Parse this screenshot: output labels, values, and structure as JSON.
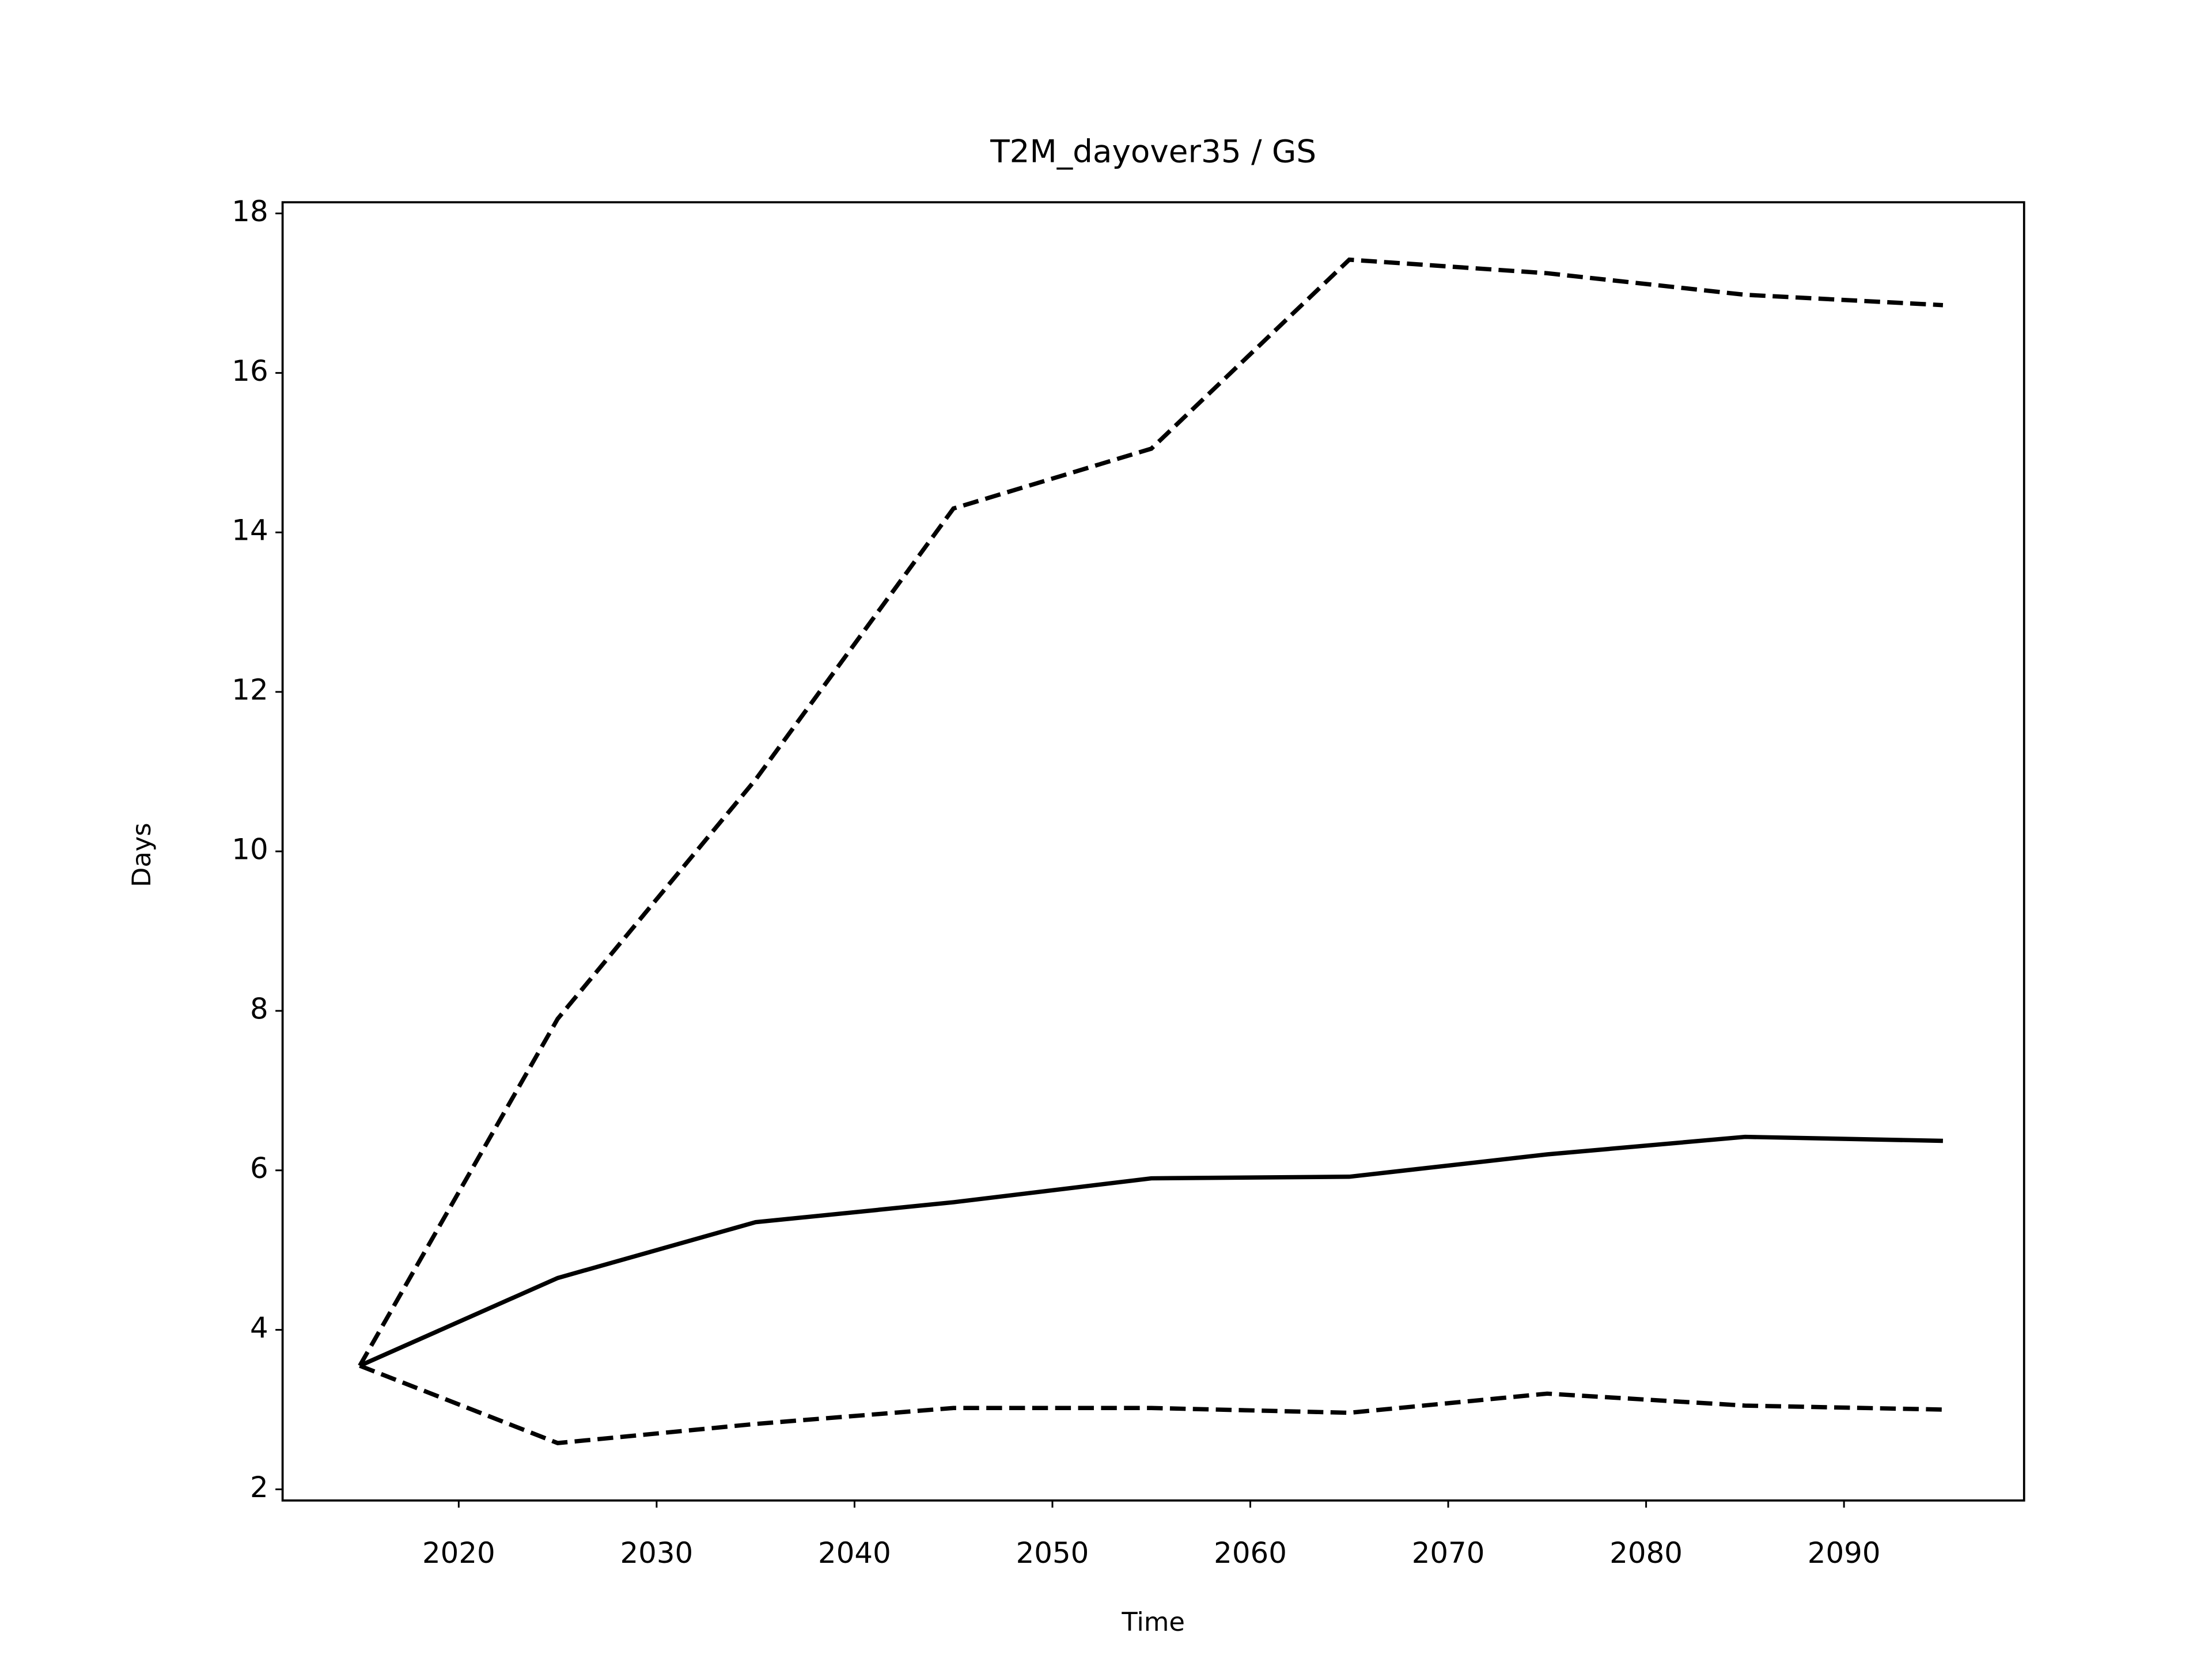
{
  "chart_data": {
    "type": "line",
    "title": "T2M_dayover35 / GS",
    "xlabel": "Time",
    "ylabel": "Days",
    "x": [
      2015,
      2025,
      2035,
      2045,
      2055,
      2065,
      2075,
      2085,
      2095
    ],
    "series": [
      {
        "color": "#000000",
        "linestyle": "solid",
        "values": [
          3.55,
          4.65,
          5.35,
          5.6,
          5.9,
          5.92,
          6.2,
          6.42,
          6.37
        ]
      },
      {
        "color": "#000000",
        "linestyle": "dashed",
        "values": [
          3.55,
          7.9,
          10.9,
          14.3,
          15.05,
          17.42,
          17.25,
          16.98,
          16.85
        ]
      },
      {
        "color": "#000000",
        "linestyle": "dashed",
        "values": [
          3.55,
          2.58,
          2.82,
          3.02,
          3.02,
          2.96,
          3.2,
          3.05,
          3.0
        ]
      }
    ],
    "xlim": [
      2011.1,
      2099.1
    ],
    "xticks": [
      2020,
      2030,
      2040,
      2050,
      2060,
      2070,
      2080,
      2090
    ],
    "ylim": [
      1.86,
      18.14
    ],
    "yticks": [
      2,
      4,
      6,
      8,
      10,
      12,
      14,
      16,
      18
    ],
    "grid": false
  }
}
